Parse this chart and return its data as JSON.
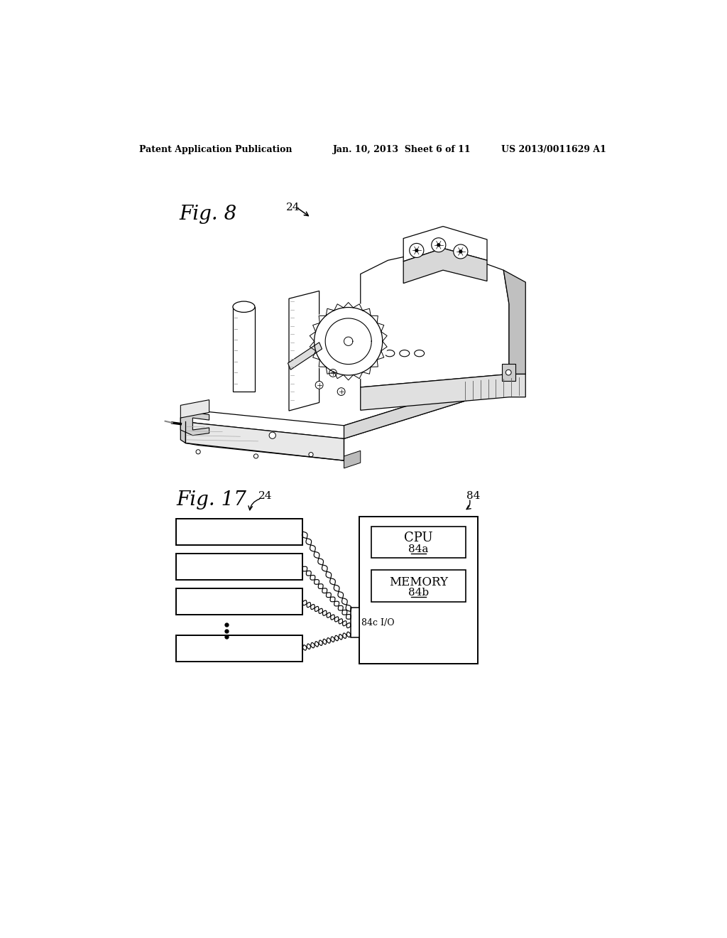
{
  "background_color": "#ffffff",
  "header_left": "Patent Application Publication",
  "header_mid": "Jan. 10, 2013  Sheet 6 of 11",
  "header_right": "US 2013/0011629 A1",
  "fig8_label": "Fig. 8",
  "fig8_ref": "24",
  "fig17_label": "Fig. 17",
  "fig17_ref": "24",
  "fig17_box84_ref": "84",
  "fig17_cpu_label": "CPU",
  "fig17_cpu_ref": "84a",
  "fig17_mem_label": "MEMORY",
  "fig17_mem_ref": "84b",
  "fig17_io_label": "84c I/O",
  "header_fontsize": 9,
  "fig_label_fontsize": 20,
  "ref_fontsize": 11
}
